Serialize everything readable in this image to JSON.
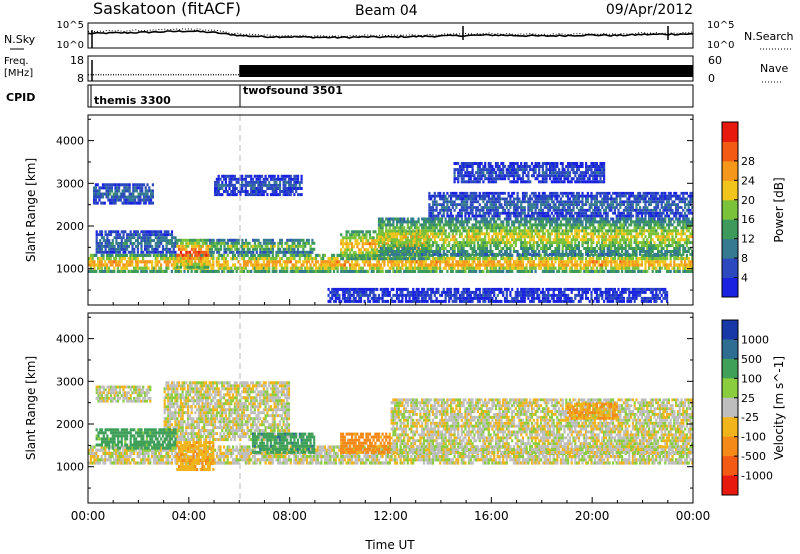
{
  "header": {
    "station": "Saskatoon (fitACF)",
    "beam": "Beam 04",
    "date": "09/Apr/2012"
  },
  "chart_data": [
    {
      "type": "line",
      "panel": "noise",
      "left_label": "N.Sky",
      "right_label": "N.Search",
      "yticks_left": [
        "10^5",
        "10^0"
      ],
      "yticks_right": [
        "10^5",
        "10^0"
      ],
      "series": [
        {
          "name": "N.Sky",
          "style": "solid"
        },
        {
          "name": "N.Search",
          "style": "dotted"
        }
      ],
      "x": [
        0,
        1,
        2,
        3,
        4,
        5,
        6,
        7,
        8,
        9,
        10,
        11,
        12,
        13,
        14,
        15,
        16,
        17,
        18,
        19,
        20,
        21,
        22,
        23,
        24
      ],
      "sky_level": [
        0.58,
        0.6,
        0.62,
        0.65,
        0.68,
        0.62,
        0.5,
        0.45,
        0.45,
        0.43,
        0.42,
        0.44,
        0.44,
        0.46,
        0.48,
        0.5,
        0.52,
        0.5,
        0.48,
        0.5,
        0.52,
        0.5,
        0.54,
        0.55,
        0.56
      ],
      "search_level": [
        0.66,
        0.68,
        0.7,
        0.72,
        0.76,
        0.7,
        0.56,
        0.5,
        0.5,
        0.48,
        0.47,
        0.5,
        0.5,
        0.52,
        0.54,
        0.55,
        0.58,
        0.55,
        0.54,
        0.56,
        0.58,
        0.55,
        0.6,
        0.6,
        0.62
      ]
    },
    {
      "type": "line",
      "panel": "frequency",
      "left_label": [
        "Freq.",
        "[MHz]"
      ],
      "right_label": "Nave",
      "yticks_left": [
        "18",
        "8"
      ],
      "yticks_right": [
        "60",
        "0"
      ],
      "freq_segments": [
        {
          "from": 0,
          "to": 6,
          "mhz": 10.5
        },
        {
          "from": 6,
          "to": 24,
          "mhz": 12.0
        }
      ],
      "nave_note": "dense vertical bars from 06:00 onward"
    },
    {
      "type": "table",
      "panel": "cpid",
      "label": "CPID",
      "programs": [
        {
          "name": "themis 3300",
          "start_hour": 0
        },
        {
          "name": "twofsound 3501",
          "start_hour": 6
        }
      ]
    },
    {
      "type": "heatmap",
      "panel": "power",
      "ylabel": "Slant Range [km]",
      "yticks": [
        1000,
        2000,
        3000,
        4000
      ],
      "ylim": [
        150,
        4600
      ],
      "xlim": [
        0,
        24
      ],
      "colorbar": {
        "label": "Power [dB]",
        "ticks": [
          4,
          8,
          12,
          16,
          20,
          24,
          28
        ],
        "range": [
          0,
          32
        ],
        "colors": [
          "#1822e0",
          "#2c49c0",
          "#357a90",
          "#3d9a5a",
          "#79c23a",
          "#f1c51c",
          "#f5971a",
          "#f35a14",
          "#e81a10"
        ]
      },
      "regions": [
        {
          "t0": 0.0,
          "t1": 24.0,
          "r0": 900,
          "r1": 1350,
          "p": 27
        },
        {
          "t0": 0.3,
          "t1": 3.5,
          "r0": 1350,
          "r1": 1900,
          "p": 10
        },
        {
          "t0": 3.5,
          "t1": 4.8,
          "r0": 1000,
          "r1": 1700,
          "p": 30
        },
        {
          "t0": 4.8,
          "t1": 9.0,
          "r0": 1350,
          "r1": 1700,
          "p": 18
        },
        {
          "t0": 0.2,
          "t1": 2.6,
          "r0": 2500,
          "r1": 3000,
          "p": 9
        },
        {
          "t0": 5.0,
          "t1": 8.5,
          "r0": 2700,
          "r1": 3200,
          "p": 7
        },
        {
          "t0": 10.0,
          "t1": 13.5,
          "r0": 1200,
          "r1": 1900,
          "p": 25
        },
        {
          "t0": 11.5,
          "t1": 24.0,
          "r0": 1300,
          "r1": 2200,
          "p": 20
        },
        {
          "t0": 13.5,
          "t1": 24.0,
          "r0": 2200,
          "r1": 2800,
          "p": 8
        },
        {
          "t0": 14.5,
          "t1": 20.5,
          "r0": 3000,
          "r1": 3500,
          "p": 6
        },
        {
          "t0": 9.5,
          "t1": 23.0,
          "r0": 200,
          "r1": 550,
          "p": 5
        }
      ]
    },
    {
      "type": "heatmap",
      "panel": "velocity",
      "ylabel": "Slant Range [km]",
      "yticks": [
        1000,
        2000,
        3000,
        4000
      ],
      "ylim": [
        150,
        4600
      ],
      "xlim": [
        0,
        24
      ],
      "xticks": [
        "00:00",
        "04:00",
        "08:00",
        "12:00",
        "16:00",
        "20:00",
        "00:00"
      ],
      "xlabel": "Time UT",
      "colorbar": {
        "label": "Velocity [m s^-1]",
        "ticks": [
          "1000",
          "500",
          "100",
          "25",
          "-25",
          "-100",
          "-500",
          "-1000"
        ],
        "colors": [
          "#1838a8",
          "#2e6e92",
          "#3fa05a",
          "#8acd3e",
          "#bebebe",
          "#f1b41a",
          "#f58a18",
          "#f35a14",
          "#e81a10"
        ]
      },
      "regions": [
        {
          "t0": 0.0,
          "t1": 24.0,
          "r0": 1050,
          "r1": 1500,
          "v": 0
        },
        {
          "t0": 3.0,
          "t1": 8.0,
          "r0": 1600,
          "r1": 3000,
          "v": 0
        },
        {
          "t0": 0.3,
          "t1": 3.5,
          "r0": 1400,
          "r1": 1900,
          "v": 150
        },
        {
          "t0": 3.5,
          "t1": 5.0,
          "r0": 900,
          "r1": 1600,
          "v": -120
        },
        {
          "t0": 6.5,
          "t1": 9.0,
          "r0": 1300,
          "r1": 1800,
          "v": 250
        },
        {
          "t0": 10.0,
          "t1": 12.0,
          "r0": 1300,
          "r1": 1800,
          "v": -200
        },
        {
          "t0": 12.0,
          "t1": 24.0,
          "r0": 1300,
          "r1": 2600,
          "v": 0
        },
        {
          "t0": 19.0,
          "t1": 21.0,
          "r0": 2100,
          "r1": 2500,
          "v": -150
        },
        {
          "t0": 0.3,
          "t1": 2.5,
          "r0": 2500,
          "r1": 2900,
          "v": 0
        }
      ]
    }
  ]
}
